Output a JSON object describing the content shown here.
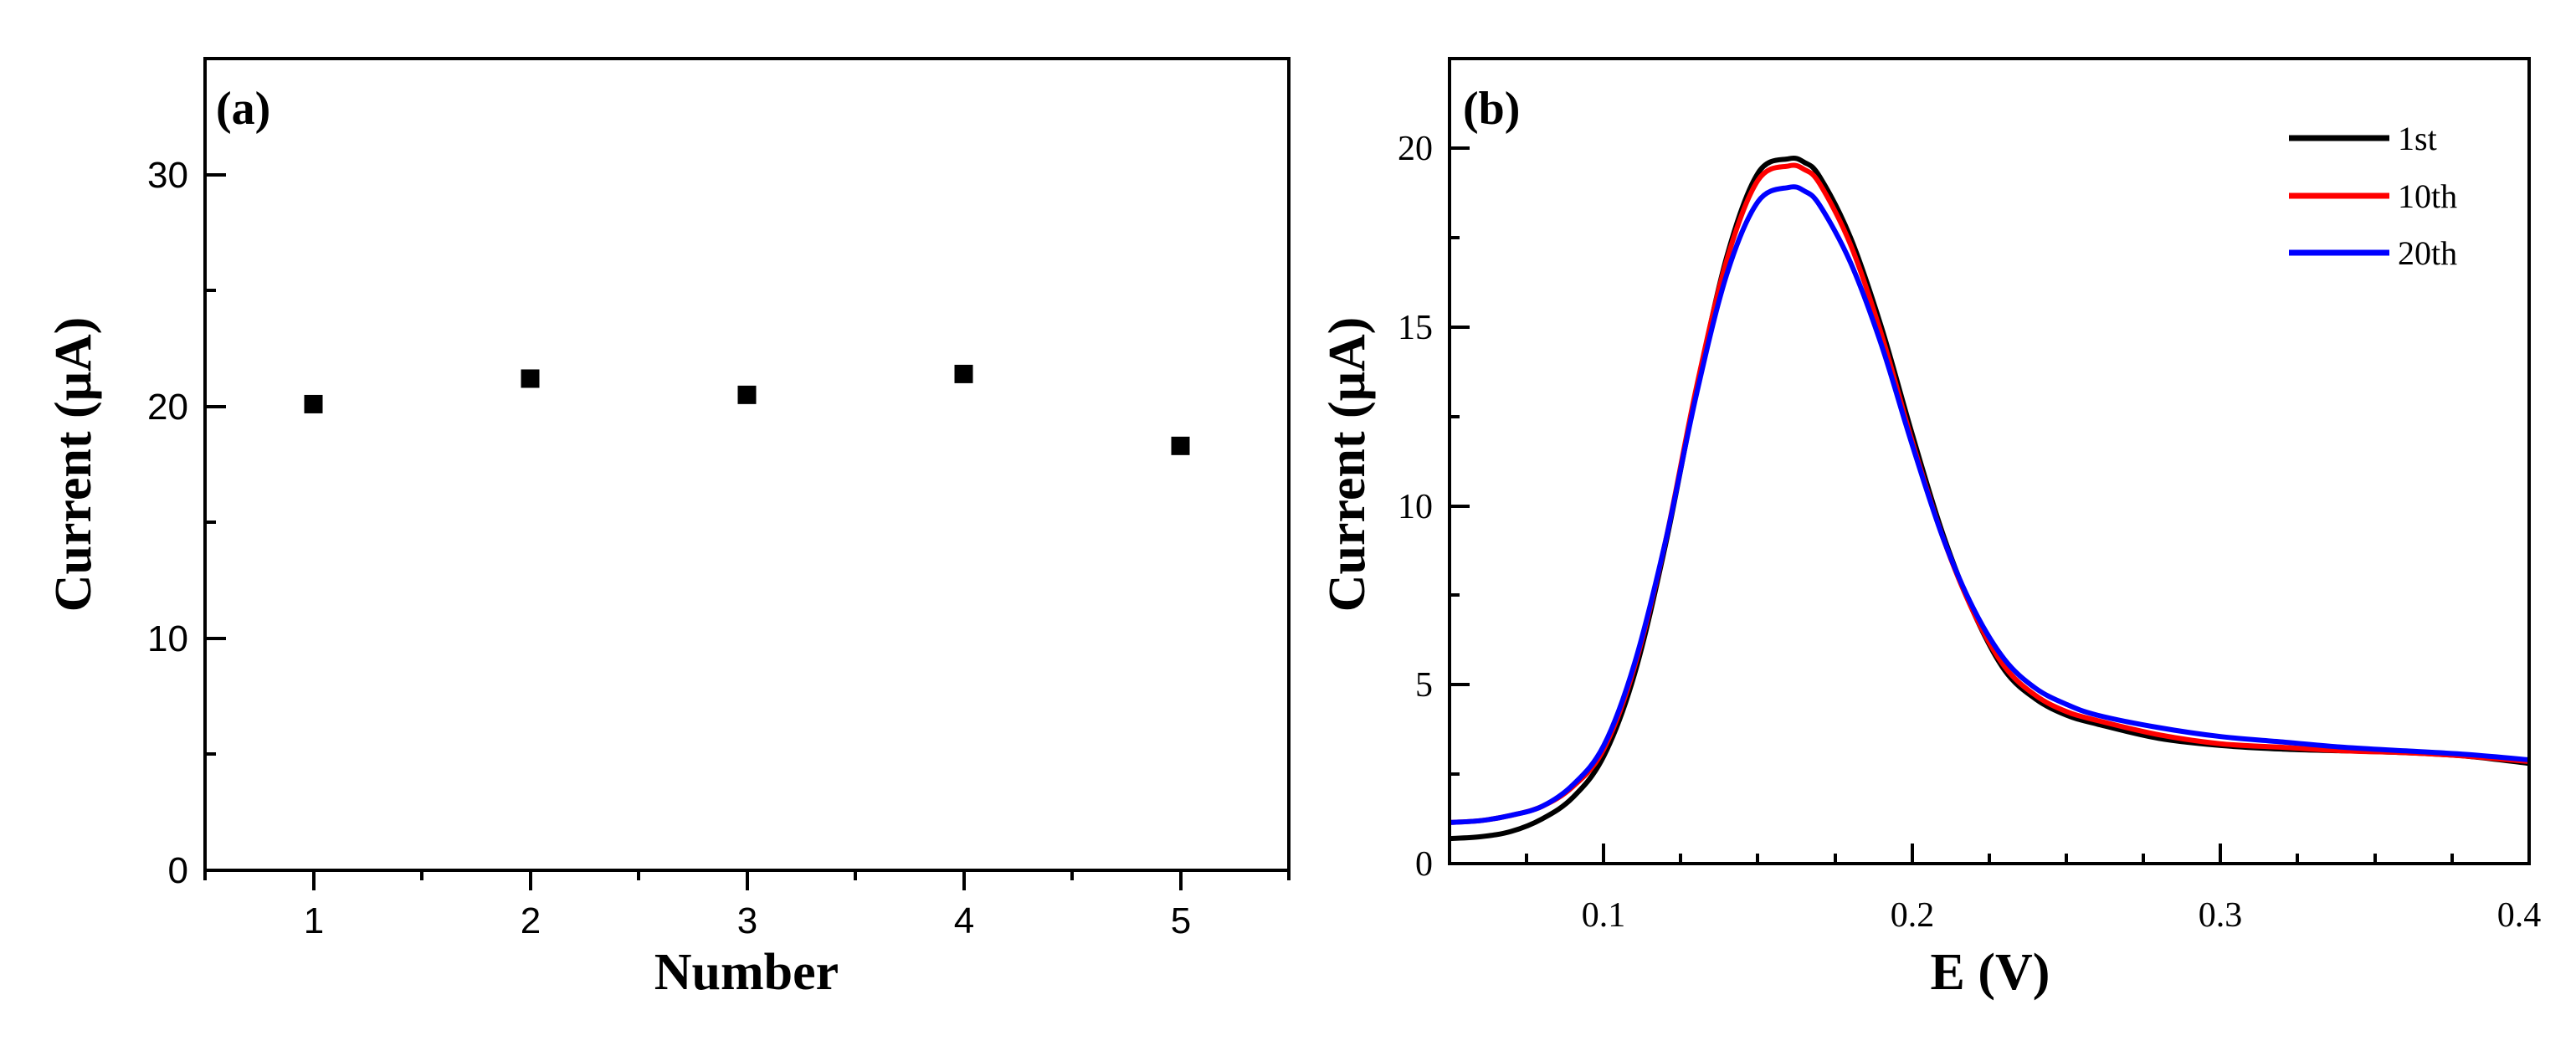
{
  "chart_data": [
    {
      "panel": "(a)",
      "type": "scatter",
      "xlabel": "Number",
      "ylabel": "Current (μA)",
      "xlim": [
        0.5,
        5.5
      ],
      "ylim": [
        0,
        35
      ],
      "xticks": [
        "1",
        "2",
        "3",
        "4",
        "5"
      ],
      "yticks": [
        "0",
        "10",
        "20",
        "30"
      ],
      "x": [
        1,
        2,
        3,
        4,
        5
      ],
      "y": [
        20.1,
        21.2,
        20.5,
        21.4,
        18.3
      ],
      "marker_color": "#000000"
    },
    {
      "panel": "(b)",
      "type": "line",
      "xlabel": "E (V)",
      "ylabel": "Current (μA)",
      "xlim": [
        0.05,
        0.4
      ],
      "ylim": [
        0,
        22.5
      ],
      "xticks": [
        "0.1",
        "0.2",
        "0.3",
        "0.4"
      ],
      "yticks": [
        "0",
        "5",
        "10",
        "15",
        "20"
      ],
      "legend_position": "top-right",
      "series": [
        {
          "name": "1st",
          "color": "#000000",
          "x": [
            0.05,
            0.06,
            0.07,
            0.08,
            0.09,
            0.1,
            0.11,
            0.12,
            0.13,
            0.14,
            0.15,
            0.16,
            0.165,
            0.17,
            0.18,
            0.19,
            0.2,
            0.21,
            0.22,
            0.23,
            0.24,
            0.25,
            0.26,
            0.28,
            0.3,
            0.32,
            0.34,
            0.36,
            0.38,
            0.4
          ],
          "y": [
            0.7,
            0.75,
            0.9,
            1.25,
            1.85,
            3.0,
            5.3,
            8.9,
            13.2,
            17.0,
            19.3,
            19.7,
            19.6,
            19.2,
            17.5,
            15.0,
            12.0,
            9.2,
            7.0,
            5.4,
            4.6,
            4.15,
            3.9,
            3.5,
            3.3,
            3.2,
            3.15,
            3.1,
            3.0,
            2.8
          ]
        },
        {
          "name": "10th",
          "color": "#ff0000",
          "x": [
            0.05,
            0.06,
            0.07,
            0.08,
            0.09,
            0.1,
            0.11,
            0.12,
            0.13,
            0.14,
            0.15,
            0.16,
            0.165,
            0.17,
            0.18,
            0.19,
            0.2,
            0.21,
            0.22,
            0.23,
            0.24,
            0.25,
            0.26,
            0.28,
            0.3,
            0.32,
            0.34,
            0.36,
            0.38,
            0.4
          ],
          "y": [
            1.15,
            1.2,
            1.35,
            1.6,
            2.15,
            3.2,
            5.5,
            9.0,
            13.3,
            16.9,
            19.1,
            19.5,
            19.4,
            19.0,
            17.3,
            14.8,
            11.8,
            9.1,
            7.0,
            5.5,
            4.7,
            4.25,
            4.0,
            3.6,
            3.35,
            3.25,
            3.15,
            3.1,
            3.0,
            2.85
          ]
        },
        {
          "name": "20th",
          "color": "#0000ff",
          "x": [
            0.05,
            0.06,
            0.07,
            0.08,
            0.09,
            0.1,
            0.11,
            0.12,
            0.13,
            0.14,
            0.15,
            0.16,
            0.165,
            0.17,
            0.18,
            0.19,
            0.2,
            0.21,
            0.22,
            0.23,
            0.24,
            0.25,
            0.26,
            0.28,
            0.3,
            0.32,
            0.34,
            0.36,
            0.38,
            0.4
          ],
          "y": [
            1.15,
            1.2,
            1.35,
            1.6,
            2.2,
            3.3,
            5.6,
            9.0,
            13.1,
            16.5,
            18.5,
            18.9,
            18.8,
            18.4,
            16.8,
            14.5,
            11.7,
            9.1,
            7.1,
            5.7,
            4.9,
            4.45,
            4.15,
            3.8,
            3.55,
            3.4,
            3.25,
            3.15,
            3.05,
            2.9
          ]
        }
      ]
    }
  ]
}
